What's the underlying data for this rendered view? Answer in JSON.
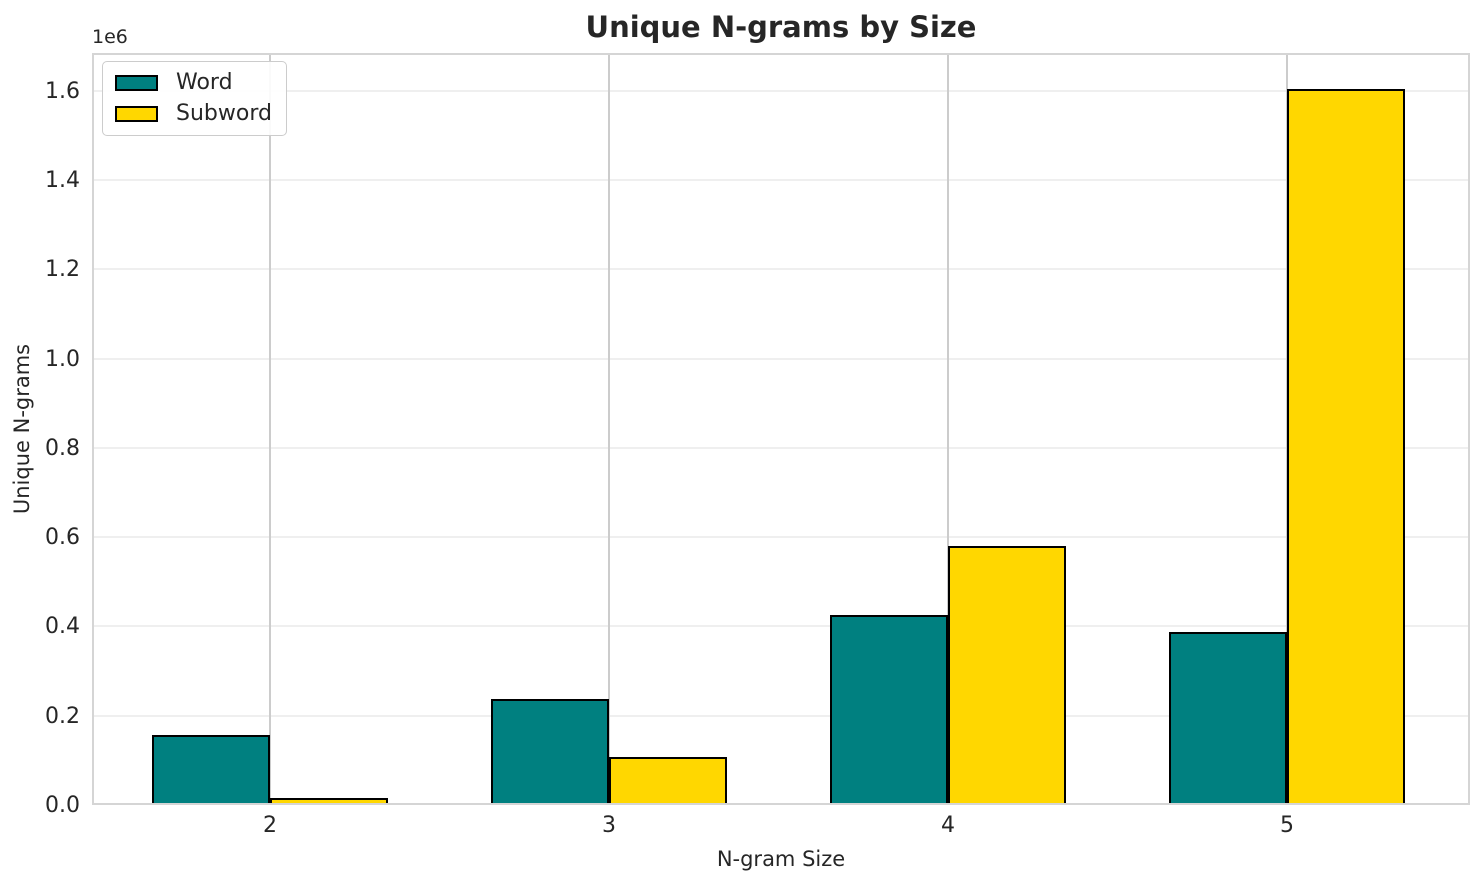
{
  "chart_data": {
    "type": "bar",
    "title": "Unique N-grams by Size",
    "xlabel": "N-gram Size",
    "ylabel": "Unique N-grams",
    "offset_text": "1e6",
    "categories": [
      "2",
      "3",
      "4",
      "5"
    ],
    "series": [
      {
        "name": "Word",
        "color": "#008080",
        "values": [
          157000,
          237000,
          425000,
          387000
        ]
      },
      {
        "name": "Subword",
        "color": "#FFD700",
        "values": [
          15000,
          107000,
          580000,
          1604000
        ]
      }
    ],
    "bar_edge_color": "#000000",
    "ylim": [
      0,
      1685000
    ],
    "yticks": [
      0,
      200000,
      400000,
      600000,
      800000,
      1000000,
      1200000,
      1400000,
      1600000
    ],
    "yticklabels": [
      "0.0",
      "0.2",
      "0.4",
      "0.6",
      "0.8",
      "1.0",
      "1.2",
      "1.4",
      "1.6"
    ],
    "grid": true,
    "legend_position": "upper left"
  }
}
